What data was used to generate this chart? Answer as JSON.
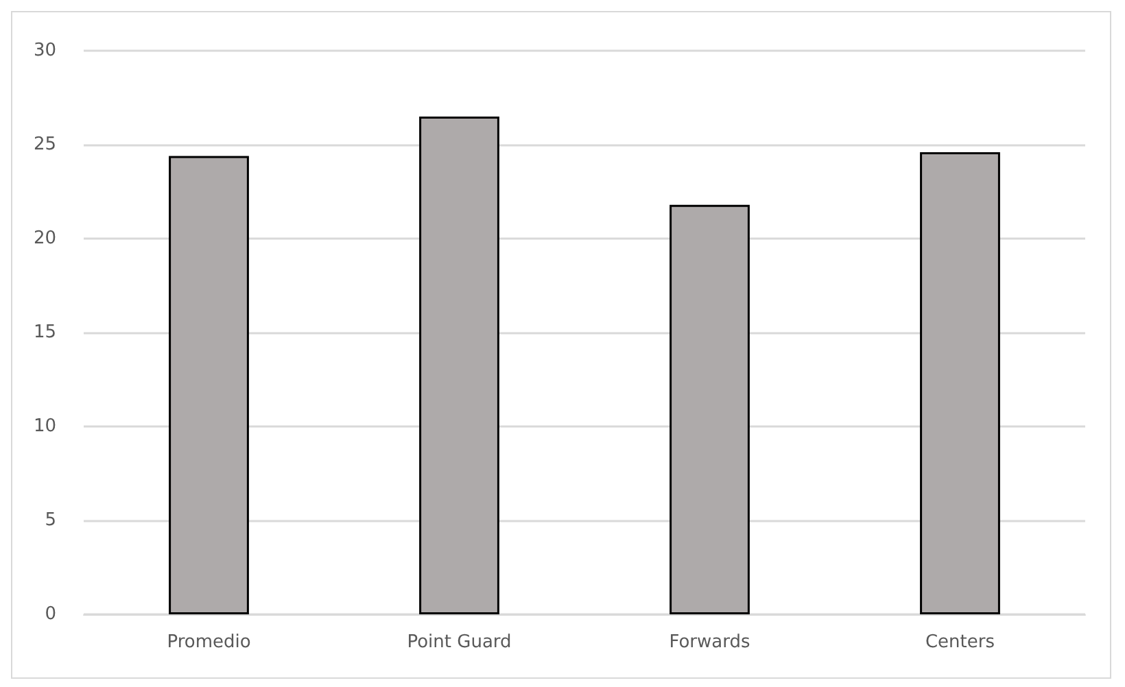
{
  "chart_data": {
    "type": "bar",
    "categories": [
      "Promedio",
      "Point Guard",
      "Forwards",
      "Centers"
    ],
    "values": [
      24.4,
      26.5,
      21.8,
      24.6
    ],
    "color": "#aeaaaa",
    "ylim": [
      0,
      30
    ],
    "yticks": [
      0,
      5,
      10,
      15,
      20,
      25,
      30
    ],
    "grid": "y"
  }
}
